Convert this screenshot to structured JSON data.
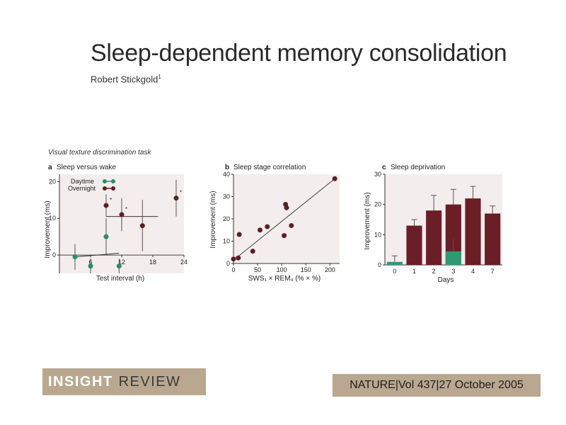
{
  "header": {
    "title": "Sleep-dependent memory consolidation",
    "author": "Robert Stickgold",
    "author_sup": "1"
  },
  "figure": {
    "task_label": "Visual texture discrimination task"
  },
  "footer": {
    "insight_bold": "INSIGHT",
    "insight_rest": "REVIEW",
    "journal": "NATURE|Vol 437|27 October 2005"
  },
  "colors": {
    "overnight": "#5e1f24",
    "daytime": "#2e8b66",
    "bar": "#6b1e26",
    "deprived_bar": "#2f9a72",
    "panel_bg": "#f3eded",
    "footer_bg": "#b9a78f"
  },
  "chart_data": [
    {
      "type": "scatter",
      "panel": "a",
      "title": "Sleep versus wake",
      "xlabel": "Test interval (h)",
      "ylabel": "Improvement (ms)",
      "xlim": [
        0,
        24
      ],
      "ylim": [
        -5,
        22
      ],
      "xticks": [
        "6",
        "12",
        "18",
        "24"
      ],
      "yticks": [
        "0",
        "10",
        "20"
      ],
      "legend": [
        "Daytime",
        "Overnight"
      ],
      "legend_position": "top-left",
      "series": [
        {
          "name": "Daytime",
          "points": [
            {
              "x": 3,
              "y": -0.5,
              "err": 3.5
            },
            {
              "x": 6,
              "y": -3,
              "err": 2
            },
            {
              "x": 9,
              "y": 5,
              "err": 5
            },
            {
              "x": 11.5,
              "y": -3,
              "err": 2
            }
          ]
        },
        {
          "name": "Overnight",
          "points": [
            {
              "x": 9,
              "y": 13.5,
              "err": 3,
              "star": true
            },
            {
              "x": 12,
              "y": 11,
              "err": 4.5,
              "star": true
            },
            {
              "x": 16,
              "y": 8,
              "err": 7
            },
            {
              "x": 22.5,
              "y": 15.5,
              "err": 5,
              "star": true
            }
          ]
        }
      ],
      "star_label": "*"
    },
    {
      "type": "scatter",
      "panel": "b",
      "title": "Sleep stage correlation",
      "xlabel": "SWS₁ × REM₄ (% × %)",
      "ylabel": "Improvement (ms)",
      "xlim": [
        0,
        220
      ],
      "ylim": [
        0,
        40
      ],
      "xticks": [
        "0",
        "50",
        "100",
        "150",
        "200"
      ],
      "yticks": [
        "0",
        "10",
        "20",
        "30",
        "40"
      ],
      "fit_line": [
        [
          0,
          1.5
        ],
        [
          210,
          38
        ]
      ],
      "points": [
        {
          "x": 0,
          "y": 2
        },
        {
          "x": 10,
          "y": 2.5
        },
        {
          "x": 12,
          "y": 13
        },
        {
          "x": 40,
          "y": 5.5
        },
        {
          "x": 55,
          "y": 15
        },
        {
          "x": 70,
          "y": 16.5
        },
        {
          "x": 105,
          "y": 12.5
        },
        {
          "x": 108,
          "y": 26.5
        },
        {
          "x": 110,
          "y": 25
        },
        {
          "x": 120,
          "y": 17
        },
        {
          "x": 210,
          "y": 38
        }
      ]
    },
    {
      "type": "bar",
      "panel": "c",
      "title": "Sleep deprivation",
      "xlabel": "Days",
      "ylabel": "Improvement (ms)",
      "ylim": [
        0,
        30
      ],
      "yticks": [
        "0",
        "10",
        "20",
        "30"
      ],
      "categories": [
        "0",
        "1",
        "2",
        "3",
        "4",
        "7"
      ],
      "values": [
        1,
        13,
        18,
        20,
        22,
        17
      ],
      "errors": [
        2,
        2,
        5,
        5,
        4,
        2.5
      ],
      "deprived": {
        "category": "3",
        "value": 4.5,
        "error": 4
      }
    }
  ]
}
